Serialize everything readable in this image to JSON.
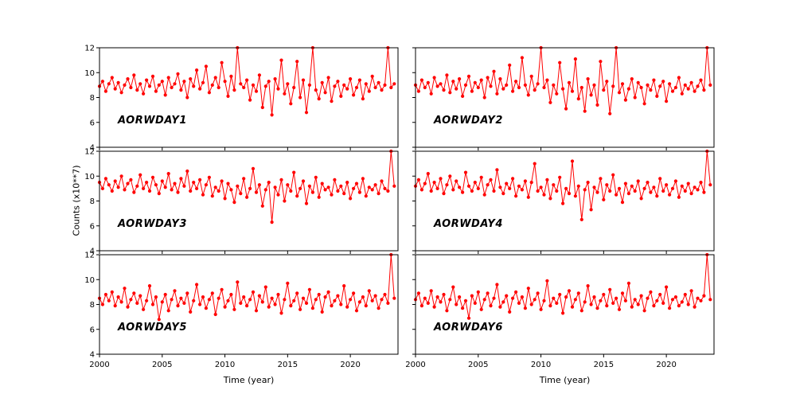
{
  "labels": {
    "ylabel": "Counts (x10**7)",
    "xlabel": "Time (year)"
  },
  "style": {
    "line_color": "#ff0000",
    "axis_color": "#000000",
    "background": "#ffffff"
  },
  "chart_data": {
    "type": "line",
    "title": "",
    "xlabel": "Time (year)",
    "ylabel": "Counts (x10**7)",
    "axes": {
      "xlim": [
        2000,
        2023.8
      ],
      "ylim": [
        4,
        12
      ],
      "xticks": [
        2000,
        2005,
        2010,
        2015,
        2020
      ],
      "yticks": [
        4,
        6,
        8,
        10,
        12
      ],
      "x_start": 2000,
      "x_step": 0.25,
      "grid": false,
      "legend": "none"
    },
    "panels": [
      {
        "label": "AORWDAY1",
        "values": [
          8.9,
          9.3,
          8.5,
          9.1,
          9.6,
          8.7,
          9.2,
          8.4,
          9.0,
          9.5,
          8.8,
          9.8,
          8.6,
          9.1,
          8.3,
          9.4,
          8.9,
          9.7,
          8.5,
          9.0,
          9.3,
          8.2,
          9.6,
          8.8,
          9.1,
          9.9,
          8.6,
          9.3,
          8.0,
          9.5,
          8.9,
          10.2,
          8.7,
          9.2,
          10.5,
          8.4,
          9.0,
          9.6,
          8.8,
          10.8,
          9.3,
          8.1,
          9.7,
          8.6,
          12.0,
          9.1,
          8.8,
          9.4,
          7.8,
          9.0,
          8.5,
          9.8,
          7.2,
          8.9,
          9.3,
          6.6,
          9.5,
          8.7,
          11.0,
          8.3,
          9.1,
          7.5,
          8.8,
          10.9,
          8.0,
          9.4,
          6.8,
          9.0,
          12.0,
          8.6,
          7.9,
          9.2,
          8.4,
          9.6,
          7.7,
          8.9,
          9.3,
          8.1,
          9.0,
          8.7,
          9.5,
          8.2,
          8.8,
          9.4,
          7.9,
          9.1,
          8.5,
          9.7,
          8.8,
          9.2,
          8.6,
          9.0,
          12.0,
          8.8,
          9.1
        ]
      },
      {
        "label": "AORWDAY2",
        "values": [
          9.0,
          8.5,
          9.4,
          8.8,
          9.2,
          8.3,
          9.6,
          8.9,
          9.1,
          8.6,
          9.8,
          8.4,
          9.3,
          8.7,
          9.5,
          8.1,
          9.0,
          9.7,
          8.5,
          9.2,
          8.8,
          9.4,
          8.0,
          9.6,
          8.9,
          10.1,
          8.3,
          9.5,
          8.7,
          9.0,
          10.6,
          8.5,
          9.3,
          8.8,
          11.2,
          9.0,
          8.2,
          9.7,
          8.6,
          9.1,
          12.0,
          8.8,
          9.4,
          7.6,
          9.0,
          8.3,
          10.8,
          8.7,
          7.1,
          9.2,
          8.5,
          11.1,
          7.9,
          8.8,
          6.9,
          9.5,
          8.2,
          9.0,
          7.4,
          10.9,
          8.6,
          9.3,
          6.7,
          8.9,
          12.0,
          8.4,
          9.1,
          7.8,
          8.7,
          9.5,
          8.0,
          9.2,
          8.8,
          7.5,
          9.0,
          8.6,
          9.4,
          8.1,
          8.9,
          9.3,
          7.7,
          9.1,
          8.5,
          8.8,
          9.6,
          8.3,
          9.0,
          8.7,
          9.2,
          8.5,
          8.9,
          9.4,
          8.6,
          12.0,
          9.0
        ]
      },
      {
        "label": "AORWDAY3",
        "values": [
          9.5,
          9.0,
          9.8,
          9.3,
          8.8,
          9.6,
          9.1,
          10.0,
          8.9,
          9.4,
          9.7,
          8.7,
          9.2,
          10.1,
          9.0,
          9.5,
          8.8,
          9.9,
          9.3,
          8.6,
          9.6,
          9.1,
          10.2,
          8.9,
          9.4,
          8.7,
          9.8,
          9.2,
          10.4,
          8.8,
          9.5,
          9.0,
          9.7,
          8.5,
          9.3,
          9.9,
          8.4,
          9.1,
          8.8,
          9.6,
          8.2,
          9.4,
          8.9,
          7.9,
          9.2,
          8.6,
          9.8,
          8.3,
          9.0,
          10.6,
          8.7,
          9.3,
          7.6,
          8.9,
          9.5,
          6.3,
          9.1,
          8.5,
          9.7,
          8.0,
          9.3,
          8.8,
          10.3,
          8.4,
          9.0,
          9.6,
          7.8,
          9.2,
          8.7,
          9.9,
          8.3,
          9.4,
          8.9,
          9.1,
          8.5,
          9.7,
          8.8,
          9.2,
          8.6,
          9.5,
          8.2,
          9.0,
          9.4,
          8.7,
          9.8,
          8.4,
          9.1,
          8.9,
          9.3,
          8.6,
          9.6,
          9.0,
          8.8,
          12.0,
          9.2
        ]
      },
      {
        "label": "AORWDAY4",
        "values": [
          9.2,
          9.7,
          8.9,
          9.4,
          10.2,
          8.8,
          9.5,
          9.0,
          9.8,
          8.6,
          9.3,
          10.0,
          8.9,
          9.6,
          9.1,
          8.7,
          10.3,
          9.2,
          8.8,
          9.5,
          9.0,
          9.9,
          8.5,
          9.3,
          9.7,
          8.8,
          10.5,
          9.1,
          8.6,
          9.4,
          9.0,
          9.8,
          8.4,
          9.2,
          8.9,
          9.6,
          8.3,
          9.5,
          11.0,
          8.8,
          9.1,
          8.5,
          9.7,
          8.2,
          9.3,
          8.8,
          9.9,
          7.8,
          9.0,
          8.6,
          11.2,
          8.4,
          9.2,
          6.5,
          8.9,
          9.5,
          7.3,
          9.1,
          8.7,
          9.8,
          8.1,
          9.3,
          8.8,
          10.1,
          8.5,
          9.0,
          7.9,
          9.4,
          8.6,
          9.2,
          8.8,
          9.6,
          8.2,
          9.0,
          9.5,
          8.7,
          9.1,
          8.4,
          9.8,
          8.8,
          9.3,
          8.5,
          9.0,
          9.6,
          8.3,
          9.2,
          8.8,
          9.4,
          8.6,
          9.1,
          8.9,
          9.5,
          8.7,
          12.0,
          9.3
        ]
      },
      {
        "label": "AORWDAY5",
        "values": [
          8.5,
          8.0,
          8.8,
          8.3,
          9.0,
          7.9,
          8.6,
          8.2,
          9.3,
          7.8,
          8.4,
          8.9,
          8.1,
          8.7,
          7.6,
          8.3,
          9.5,
          8.0,
          8.6,
          6.8,
          8.2,
          8.8,
          7.5,
          8.4,
          9.1,
          7.9,
          8.5,
          8.1,
          8.9,
          7.4,
          8.3,
          9.6,
          8.0,
          8.6,
          7.7,
          8.4,
          8.9,
          7.2,
          8.5,
          9.2,
          7.8,
          8.3,
          8.8,
          7.6,
          9.8,
          8.1,
          8.6,
          7.9,
          8.4,
          9.0,
          7.5,
          8.7,
          8.2,
          9.4,
          7.8,
          8.5,
          8.0,
          8.8,
          7.3,
          8.4,
          9.7,
          7.9,
          8.3,
          8.9,
          7.6,
          8.5,
          8.1,
          9.2,
          7.7,
          8.4,
          8.8,
          7.4,
          8.6,
          9.0,
          7.9,
          8.3,
          8.7,
          8.0,
          9.5,
          7.8,
          8.4,
          8.9,
          7.5,
          8.2,
          8.6,
          7.9,
          9.1,
          8.3,
          8.7,
          7.7,
          8.4,
          8.8,
          8.1,
          12.0,
          8.5
        ]
      },
      {
        "label": "AORWDAY6",
        "values": [
          8.4,
          8.9,
          7.9,
          8.5,
          8.1,
          9.1,
          7.8,
          8.6,
          8.2,
          8.8,
          7.5,
          8.4,
          9.4,
          8.0,
          8.6,
          7.7,
          8.3,
          6.9,
          8.7,
          8.1,
          9.0,
          7.6,
          8.4,
          8.9,
          7.9,
          8.5,
          9.6,
          7.8,
          8.2,
          8.7,
          7.4,
          8.5,
          9.0,
          8.1,
          8.6,
          7.7,
          9.3,
          8.0,
          8.4,
          8.9,
          7.6,
          8.3,
          9.9,
          7.9,
          8.5,
          8.1,
          8.8,
          7.3,
          8.6,
          9.1,
          7.8,
          8.4,
          8.9,
          7.5,
          8.2,
          9.5,
          8.0,
          8.6,
          7.7,
          8.3,
          8.8,
          7.9,
          9.2,
          8.1,
          8.5,
          7.6,
          8.9,
          8.3,
          9.7,
          7.8,
          8.4,
          8.0,
          8.7,
          7.5,
          8.5,
          9.0,
          7.9,
          8.3,
          8.8,
          8.1,
          9.4,
          7.7,
          8.4,
          8.6,
          7.9,
          8.2,
          8.8,
          8.0,
          9.1,
          7.8,
          8.5,
          8.3,
          8.7,
          12.0,
          8.4
        ]
      }
    ]
  }
}
